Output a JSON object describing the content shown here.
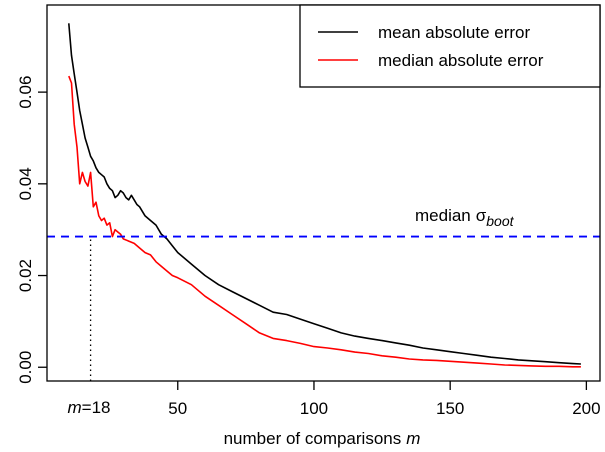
{
  "chart_data": {
    "type": "line",
    "title": "",
    "xlabel": "number of comparisons",
    "xlabel_var": "m",
    "ylabel": "",
    "xlim": [
      2,
      205
    ],
    "ylim": [
      -0.003,
      0.079
    ],
    "x_ticks": [
      50,
      100,
      150,
      200
    ],
    "y_ticks": [
      0.0,
      0.02,
      0.04,
      0.06
    ],
    "y_tick_labels": [
      "0.00",
      "0.02",
      "0.04",
      "0.06"
    ],
    "grid": false,
    "legend_position": "top-right",
    "series": [
      {
        "name": "mean absolute error",
        "color": "#000000",
        "points": [
          [
            10,
            0.075
          ],
          [
            11,
            0.068
          ],
          [
            12,
            0.064
          ],
          [
            13,
            0.06
          ],
          [
            14,
            0.056
          ],
          [
            15,
            0.053
          ],
          [
            16,
            0.05
          ],
          [
            17,
            0.048
          ],
          [
            18,
            0.046
          ],
          [
            19,
            0.045
          ],
          [
            20,
            0.0435
          ],
          [
            21,
            0.0425
          ],
          [
            22,
            0.042
          ],
          [
            23,
            0.0415
          ],
          [
            24,
            0.04
          ],
          [
            25,
            0.039
          ],
          [
            26,
            0.0385
          ],
          [
            27,
            0.037
          ],
          [
            28,
            0.0375
          ],
          [
            29,
            0.0385
          ],
          [
            30,
            0.038
          ],
          [
            31,
            0.037
          ],
          [
            32,
            0.0365
          ],
          [
            33,
            0.0375
          ],
          [
            34,
            0.0365
          ],
          [
            35,
            0.0355
          ],
          [
            36,
            0.035
          ],
          [
            37,
            0.034
          ],
          [
            38,
            0.033
          ],
          [
            40,
            0.032
          ],
          [
            42,
            0.031
          ],
          [
            44,
            0.029
          ],
          [
            46,
            0.028
          ],
          [
            48,
            0.0265
          ],
          [
            50,
            0.025
          ],
          [
            55,
            0.0225
          ],
          [
            60,
            0.02
          ],
          [
            65,
            0.018
          ],
          [
            70,
            0.0165
          ],
          [
            75,
            0.015
          ],
          [
            80,
            0.0135
          ],
          [
            85,
            0.012
          ],
          [
            90,
            0.0115
          ],
          [
            95,
            0.0105
          ],
          [
            100,
            0.0095
          ],
          [
            105,
            0.0085
          ],
          [
            110,
            0.0075
          ],
          [
            115,
            0.0068
          ],
          [
            120,
            0.0063
          ],
          [
            125,
            0.0058
          ],
          [
            130,
            0.0053
          ],
          [
            135,
            0.0048
          ],
          [
            140,
            0.0042
          ],
          [
            145,
            0.0038
          ],
          [
            150,
            0.0034
          ],
          [
            155,
            0.003
          ],
          [
            160,
            0.0026
          ],
          [
            165,
            0.0022
          ],
          [
            170,
            0.0019
          ],
          [
            175,
            0.0016
          ],
          [
            180,
            0.0014
          ],
          [
            185,
            0.0012
          ],
          [
            190,
            0.001
          ],
          [
            195,
            0.0008
          ],
          [
            198,
            0.0007
          ]
        ]
      },
      {
        "name": "median absolute error",
        "color": "#ff0000",
        "points": [
          [
            10,
            0.0635
          ],
          [
            11,
            0.062
          ],
          [
            12,
            0.053
          ],
          [
            13,
            0.048
          ],
          [
            14,
            0.04
          ],
          [
            15,
            0.0425
          ],
          [
            16,
            0.0405
          ],
          [
            17,
            0.0395
          ],
          [
            18,
            0.0425
          ],
          [
            19,
            0.035
          ],
          [
            20,
            0.036
          ],
          [
            21,
            0.033
          ],
          [
            22,
            0.032
          ],
          [
            23,
            0.0325
          ],
          [
            24,
            0.031
          ],
          [
            25,
            0.0315
          ],
          [
            26,
            0.0285
          ],
          [
            27,
            0.03
          ],
          [
            28,
            0.0295
          ],
          [
            29,
            0.029
          ],
          [
            30,
            0.028
          ],
          [
            32,
            0.0275
          ],
          [
            34,
            0.027
          ],
          [
            36,
            0.026
          ],
          [
            38,
            0.025
          ],
          [
            40,
            0.0245
          ],
          [
            42,
            0.023
          ],
          [
            44,
            0.022
          ],
          [
            46,
            0.021
          ],
          [
            48,
            0.02
          ],
          [
            50,
            0.0195
          ],
          [
            55,
            0.018
          ],
          [
            60,
            0.0155
          ],
          [
            65,
            0.0135
          ],
          [
            70,
            0.0115
          ],
          [
            75,
            0.0095
          ],
          [
            80,
            0.0075
          ],
          [
            85,
            0.0063
          ],
          [
            90,
            0.0058
          ],
          [
            95,
            0.0052
          ],
          [
            100,
            0.0045
          ],
          [
            105,
            0.0042
          ],
          [
            110,
            0.0038
          ],
          [
            115,
            0.0033
          ],
          [
            120,
            0.003
          ],
          [
            125,
            0.0025
          ],
          [
            130,
            0.0022
          ],
          [
            135,
            0.0018
          ],
          [
            140,
            0.0016
          ],
          [
            145,
            0.0015
          ],
          [
            150,
            0.0013
          ],
          [
            155,
            0.0011
          ],
          [
            160,
            0.0009
          ],
          [
            165,
            0.0007
          ],
          [
            170,
            0.0005
          ],
          [
            175,
            0.0004
          ],
          [
            180,
            0.0003
          ],
          [
            185,
            0.0002
          ],
          [
            190,
            0.0002
          ],
          [
            195,
            0.0001
          ],
          [
            198,
            0.0001
          ]
        ]
      }
    ],
    "reference_line": {
      "label": "median",
      "label_symbol": "σ",
      "label_subscript": "boot",
      "y": 0.0285,
      "color": "#0000ff",
      "style": "dashed"
    },
    "marker_line": {
      "x": 18,
      "label_var": "m",
      "label_value": "=18",
      "style": "dotted"
    }
  }
}
